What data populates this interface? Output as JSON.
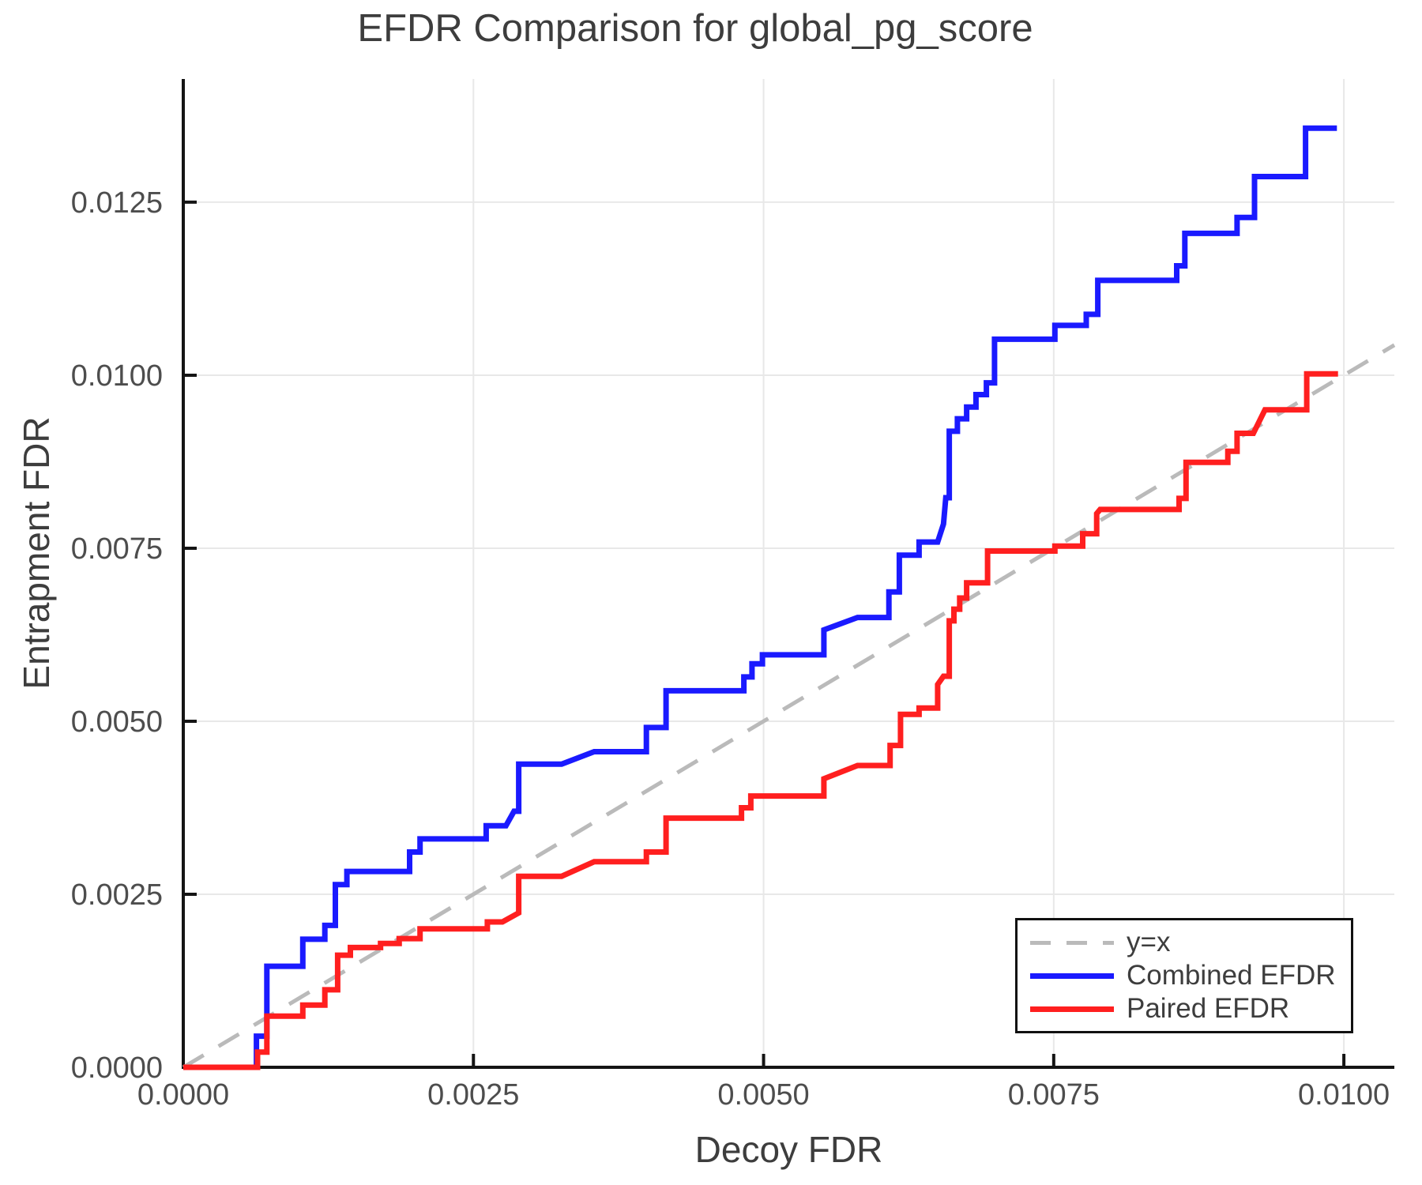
{
  "title": "EFDR Comparison for global_pg_score",
  "chart_data": {
    "type": "line",
    "title": "EFDR Comparison for global_pg_score",
    "xlabel": "Decoy FDR",
    "ylabel": "Entrapment FDR",
    "xlim": [
      0,
      0.010435
    ],
    "ylim": [
      0,
      0.01428
    ],
    "grid": true,
    "legend_position": "bottom-right",
    "colors": {
      "grid": "#e8e8e8",
      "spine": "#141414",
      "tick_label": "#4d4d4d",
      "title": "#3d3d3d",
      "combined": "#1a1aff",
      "paired": "#ff1f1f",
      "identity": "#bababa"
    },
    "xticks": [
      {
        "value": 0.0,
        "label": "0.0000"
      },
      {
        "value": 0.0025,
        "label": "0.0025"
      },
      {
        "value": 0.005,
        "label": "0.0050"
      },
      {
        "value": 0.0075,
        "label": "0.0075"
      },
      {
        "value": 0.01,
        "label": "0.0100"
      }
    ],
    "yticks": [
      {
        "value": 0.0,
        "label": "0.0000"
      },
      {
        "value": 0.0025,
        "label": "0.0025"
      },
      {
        "value": 0.005,
        "label": "0.0050"
      },
      {
        "value": 0.0075,
        "label": "0.0075"
      },
      {
        "value": 0.01,
        "label": "0.0100"
      },
      {
        "value": 0.0125,
        "label": "0.0125"
      }
    ],
    "series": [
      {
        "name": "y=x",
        "color": "#bababa",
        "width": 5,
        "dash": "30 22",
        "points": [
          [
            0,
            0
          ],
          [
            0.010435,
            0.010435
          ]
        ]
      },
      {
        "name": "Combined EFDR",
        "color": "#1a1aff",
        "width": 7,
        "dash": null,
        "points": [
          [
            0,
            0
          ],
          [
            0.00063,
            0
          ],
          [
            0.00063,
            0.00045
          ],
          [
            0.00072,
            0.00045
          ],
          [
            0.00072,
            0.00146
          ],
          [
            0.00103,
            0.00146
          ],
          [
            0.00103,
            0.00185
          ],
          [
            0.00122,
            0.00185
          ],
          [
            0.00122,
            0.00205
          ],
          [
            0.00131,
            0.00205
          ],
          [
            0.00131,
            0.00264
          ],
          [
            0.00141,
            0.00264
          ],
          [
            0.00141,
            0.00283
          ],
          [
            0.00195,
            0.00283
          ],
          [
            0.00195,
            0.00311
          ],
          [
            0.00204,
            0.00311
          ],
          [
            0.00204,
            0.0033
          ],
          [
            0.00261,
            0.0033
          ],
          [
            0.00261,
            0.00349
          ],
          [
            0.00278,
            0.00349
          ],
          [
            0.00285,
            0.0037
          ],
          [
            0.00289,
            0.0037
          ],
          [
            0.00289,
            0.00438
          ],
          [
            0.00326,
            0.00438
          ],
          [
            0.00354,
            0.00456
          ],
          [
            0.00399,
            0.00456
          ],
          [
            0.00399,
            0.00491
          ],
          [
            0.00416,
            0.00491
          ],
          [
            0.00416,
            0.00544
          ],
          [
            0.00483,
            0.00544
          ],
          [
            0.00483,
            0.00564
          ],
          [
            0.0049,
            0.00564
          ],
          [
            0.0049,
            0.00583
          ],
          [
            0.00499,
            0.00583
          ],
          [
            0.00499,
            0.00596
          ],
          [
            0.00552,
            0.00596
          ],
          [
            0.00552,
            0.00632
          ],
          [
            0.00581,
            0.0065
          ],
          [
            0.00608,
            0.0065
          ],
          [
            0.00608,
            0.00687
          ],
          [
            0.00617,
            0.00687
          ],
          [
            0.00617,
            0.0074
          ],
          [
            0.00634,
            0.0074
          ],
          [
            0.00634,
            0.00759
          ],
          [
            0.0065,
            0.00759
          ],
          [
            0.00655,
            0.00785
          ],
          [
            0.00657,
            0.00823
          ],
          [
            0.0066,
            0.00823
          ],
          [
            0.0066,
            0.00919
          ],
          [
            0.00667,
            0.00919
          ],
          [
            0.00667,
            0.00937
          ],
          [
            0.00675,
            0.00937
          ],
          [
            0.00675,
            0.00954
          ],
          [
            0.00683,
            0.00954
          ],
          [
            0.00683,
            0.00972
          ],
          [
            0.00692,
            0.00972
          ],
          [
            0.00692,
            0.00989
          ],
          [
            0.00699,
            0.00989
          ],
          [
            0.00699,
            0.01052
          ],
          [
            0.00751,
            0.01052
          ],
          [
            0.00751,
            0.01072
          ],
          [
            0.00778,
            0.01072
          ],
          [
            0.00778,
            0.01088
          ],
          [
            0.00788,
            0.01088
          ],
          [
            0.00788,
            0.01137
          ],
          [
            0.00856,
            0.01137
          ],
          [
            0.00856,
            0.01158
          ],
          [
            0.00863,
            0.01158
          ],
          [
            0.00863,
            0.01205
          ],
          [
            0.00908,
            0.01205
          ],
          [
            0.00908,
            0.01228
          ],
          [
            0.00923,
            0.01228
          ],
          [
            0.00923,
            0.01287
          ],
          [
            0.00967,
            0.01287
          ],
          [
            0.00967,
            0.01357
          ],
          [
            0.00994,
            0.01357
          ]
        ]
      },
      {
        "name": "Paired EFDR",
        "color": "#ff1f1f",
        "width": 7,
        "dash": null,
        "points": [
          [
            0,
            0
          ],
          [
            0.00064,
            0
          ],
          [
            0.00064,
            0.00022
          ],
          [
            0.00072,
            0.00022
          ],
          [
            0.00072,
            0.00074
          ],
          [
            0.00103,
            0.00074
          ],
          [
            0.00103,
            0.0009
          ],
          [
            0.00122,
            0.0009
          ],
          [
            0.00122,
            0.00112
          ],
          [
            0.00133,
            0.00112
          ],
          [
            0.00133,
            0.00162
          ],
          [
            0.00144,
            0.00162
          ],
          [
            0.00144,
            0.00173
          ],
          [
            0.0017,
            0.00173
          ],
          [
            0.0017,
            0.00179
          ],
          [
            0.00186,
            0.00179
          ],
          [
            0.00186,
            0.00186
          ],
          [
            0.00204,
            0.00186
          ],
          [
            0.00204,
            0.002
          ],
          [
            0.00262,
            0.002
          ],
          [
            0.00262,
            0.0021
          ],
          [
            0.00275,
            0.0021
          ],
          [
            0.00289,
            0.00223
          ],
          [
            0.00289,
            0.00276
          ],
          [
            0.00326,
            0.00276
          ],
          [
            0.00354,
            0.00297
          ],
          [
            0.00399,
            0.00297
          ],
          [
            0.00399,
            0.00311
          ],
          [
            0.00416,
            0.00311
          ],
          [
            0.00416,
            0.0036
          ],
          [
            0.00481,
            0.0036
          ],
          [
            0.00481,
            0.00375
          ],
          [
            0.00489,
            0.00375
          ],
          [
            0.00489,
            0.00392
          ],
          [
            0.00552,
            0.00392
          ],
          [
            0.00552,
            0.00417
          ],
          [
            0.00581,
            0.00436
          ],
          [
            0.00609,
            0.00436
          ],
          [
            0.00609,
            0.00465
          ],
          [
            0.00618,
            0.00465
          ],
          [
            0.00618,
            0.0051
          ],
          [
            0.00634,
            0.0051
          ],
          [
            0.00634,
            0.00519
          ],
          [
            0.0065,
            0.00519
          ],
          [
            0.0065,
            0.00553
          ],
          [
            0.00655,
            0.00565
          ],
          [
            0.0066,
            0.00565
          ],
          [
            0.0066,
            0.00645
          ],
          [
            0.00664,
            0.00645
          ],
          [
            0.00664,
            0.00662
          ],
          [
            0.00669,
            0.00662
          ],
          [
            0.00669,
            0.00678
          ],
          [
            0.00675,
            0.00678
          ],
          [
            0.00675,
            0.007
          ],
          [
            0.00693,
            0.007
          ],
          [
            0.00693,
            0.00746
          ],
          [
            0.00751,
            0.00746
          ],
          [
            0.00751,
            0.00753
          ],
          [
            0.00775,
            0.00753
          ],
          [
            0.00775,
            0.00771
          ],
          [
            0.00787,
            0.00771
          ],
          [
            0.00787,
            0.008
          ],
          [
            0.0079,
            0.00806
          ],
          [
            0.00858,
            0.00806
          ],
          [
            0.00858,
            0.00822
          ],
          [
            0.00864,
            0.00822
          ],
          [
            0.00864,
            0.00874
          ],
          [
            0.009,
            0.00874
          ],
          [
            0.009,
            0.0089
          ],
          [
            0.00908,
            0.0089
          ],
          [
            0.00908,
            0.00916
          ],
          [
            0.00922,
            0.00916
          ],
          [
            0.00932,
            0.0095
          ],
          [
            0.00968,
            0.0095
          ],
          [
            0.00968,
            0.01002
          ],
          [
            0.00995,
            0.01002
          ]
        ]
      }
    ]
  }
}
